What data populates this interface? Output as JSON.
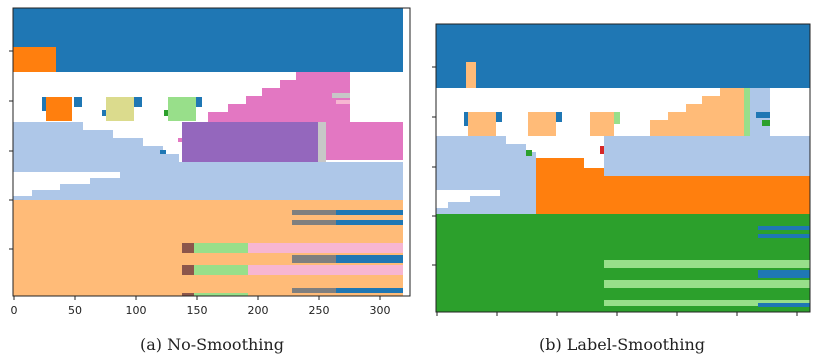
{
  "panels": [
    {
      "id": "a",
      "caption": "(a) No-Smoothing",
      "x_ticks": [
        "0",
        "50",
        "100",
        "150",
        "200",
        "250",
        "300"
      ]
    },
    {
      "id": "b",
      "caption": "(b) Label-Smoothing",
      "x_ticks": []
    }
  ],
  "colors": {
    "blue": "#1f77b4",
    "orange": "#ff7f0e",
    "light_orange": "#ffbb78",
    "green": "#2ca02c",
    "light_green": "#98df8a",
    "light_blue": "#aec7e8",
    "pink": "#e377c2",
    "light_pink": "#f7b6d2",
    "purple": "#9467bd",
    "gray": "#7f7f7f",
    "light_gray": "#c7c7c7",
    "brown": "#8c564b",
    "olive": "#dbdb8d",
    "red": "#d62728"
  }
}
